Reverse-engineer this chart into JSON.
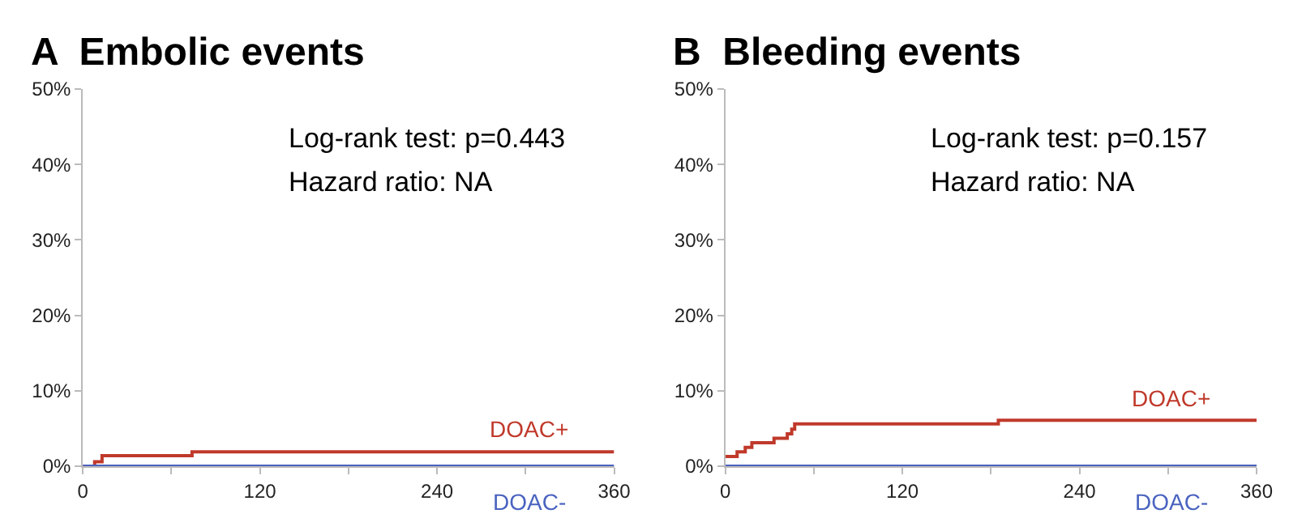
{
  "chart_data": [
    {
      "type": "step",
      "title": "A  Embolic events",
      "annotations": [
        "Log-rank test: p=0.443",
        "Hazard ratio: NA"
      ],
      "legend": false,
      "marker": "none",
      "xlim": [
        0,
        360
      ],
      "xticks": [
        0,
        {
          "value": 60,
          "label": null
        },
        120,
        {
          "value": 180,
          "label": null
        },
        240,
        {
          "value": 300,
          "label": null
        },
        360
      ],
      "ylim": [
        0,
        50
      ],
      "yticks": [
        {
          "value": 0,
          "label": "0%"
        },
        {
          "value": 10,
          "label": "10%"
        },
        {
          "value": 20,
          "label": "20%"
        },
        {
          "value": 30,
          "label": "30%"
        },
        {
          "value": 40,
          "label": "40%"
        },
        {
          "value": 50,
          "label": "50%"
        }
      ],
      "series": [
        {
          "name": "DOAC+",
          "color": "#c0392b",
          "x": [
            0,
            8,
            13,
            74,
            360
          ],
          "values": [
            0,
            0.6,
            1.4,
            1.9,
            1.9
          ]
        },
        {
          "name": "DOAC-",
          "color": "#4a63c0",
          "x": [
            0,
            360
          ],
          "values": [
            0,
            0
          ]
        }
      ]
    },
    {
      "type": "step",
      "title": "B  Bleeding events",
      "annotations": [
        "Log-rank test: p=0.157",
        "Hazard ratio: NA"
      ],
      "legend": false,
      "marker": "none",
      "xlim": [
        0,
        360
      ],
      "xticks": [
        0,
        {
          "value": 60,
          "label": null
        },
        120,
        {
          "value": 180,
          "label": null
        },
        240,
        {
          "value": 300,
          "label": null
        },
        360
      ],
      "ylim": [
        0,
        50
      ],
      "yticks": [
        {
          "value": 0,
          "label": "0%"
        },
        {
          "value": 10,
          "label": "10%"
        },
        {
          "value": 20,
          "label": "20%"
        },
        {
          "value": 30,
          "label": "30%"
        },
        {
          "value": 40,
          "label": "40%"
        },
        {
          "value": 50,
          "label": "50%"
        }
      ],
      "series": [
        {
          "name": "DOAC+",
          "color": "#c0392b",
          "x": [
            0,
            8,
            13.5,
            18,
            33,
            42,
            45,
            47,
            185,
            360
          ],
          "values": [
            1.3,
            1.9,
            2.5,
            3.1,
            3.7,
            4.3,
            4.9,
            5.6,
            6.1,
            6.1
          ]
        },
        {
          "name": "DOAC-",
          "color": "#4a63c0",
          "x": [
            0,
            360
          ],
          "values": [
            0,
            0
          ]
        }
      ]
    }
  ]
}
